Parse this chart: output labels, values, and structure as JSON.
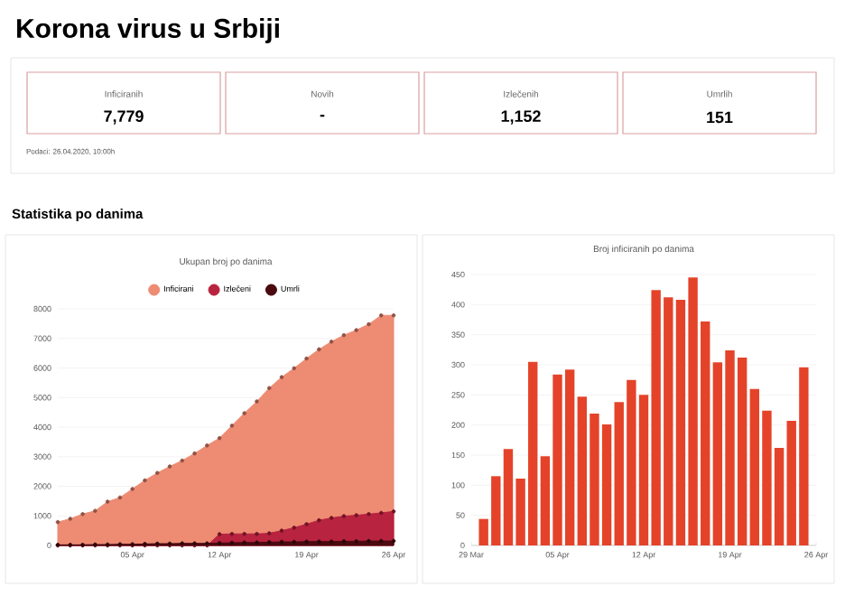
{
  "chart_data": [
    {
      "type": "other",
      "title": "Korona virus u Srbiji",
      "annotations": [
        "Inficiranih",
        "7,779",
        "Novih",
        "-",
        "Izlečenih",
        "1,152",
        "Umrlih",
        "151",
        "Podaci: 26.04.2020, 10:00h",
        "Statistika po danima"
      ]
    },
    {
      "type": "area",
      "title": "Ukupan broj po danima",
      "legend": "top",
      "grid": "y",
      "marker": "circle",
      "x": [
        "2020-03-30",
        "2020-03-31",
        "2020-04-01",
        "2020-04-02",
        "2020-04-03",
        "2020-04-04",
        "2020-04-05",
        "2020-04-06",
        "2020-04-07",
        "2020-04-08",
        "2020-04-09",
        "2020-04-10",
        "2020-04-11",
        "2020-04-12",
        "2020-04-13",
        "2020-04-14",
        "2020-04-15",
        "2020-04-16",
        "2020-04-17",
        "2020-04-18",
        "2020-04-19",
        "2020-04-20",
        "2020-04-21",
        "2020-04-22",
        "2020-04-23",
        "2020-04-24",
        "2020-04-25",
        "2020-04-26"
      ],
      "xlim": [
        "2020-03-30",
        "2020-04-26"
      ],
      "xticks": [
        {
          "value": "2020-04-05",
          "label": "05 Apr"
        },
        {
          "value": "2020-04-12",
          "label": "12 Apr"
        },
        {
          "value": "2020-04-19",
          "label": "19 Apr"
        },
        {
          "value": "2020-04-26",
          "label": "26 Apr"
        }
      ],
      "ylim": [
        0,
        8000
      ],
      "yticks": [
        0,
        1000,
        2000,
        3000,
        4000,
        5000,
        6000,
        7000,
        8000
      ],
      "series": [
        {
          "name": "Inficirani",
          "color": "#ee8b73",
          "values": [
            790,
            900,
            1060,
            1170,
            1480,
            1620,
            1910,
            2200,
            2450,
            2670,
            2870,
            3110,
            3380,
            3630,
            4050,
            4470,
            4870,
            5320,
            5690,
            5990,
            6320,
            6630,
            6890,
            7110,
            7280,
            7480,
            7780,
            7780
          ]
        },
        {
          "name": "Izlečeni",
          "color": "#b8233f",
          "values": [
            0,
            0,
            0,
            0,
            0,
            0,
            0,
            0,
            0,
            0,
            0,
            0,
            0,
            380,
            390,
            390,
            390,
            410,
            500,
            600,
            720,
            850,
            930,
            990,
            1020,
            1060,
            1100,
            1150
          ]
        },
        {
          "name": "Umrli",
          "color": "#4a0a10",
          "values": [
            20,
            20,
            20,
            30,
            30,
            40,
            40,
            50,
            60,
            60,
            70,
            70,
            70,
            80,
            90,
            100,
            100,
            110,
            120,
            120,
            130,
            130,
            130,
            140,
            140,
            150,
            150,
            150
          ]
        }
      ]
    },
    {
      "type": "bar",
      "title": "Broj inficiranih po danima",
      "grid": "y",
      "color": "#e4432a",
      "x": [
        "2020-03-30",
        "2020-03-31",
        "2020-04-01",
        "2020-04-02",
        "2020-04-03",
        "2020-04-04",
        "2020-04-05",
        "2020-04-06",
        "2020-04-07",
        "2020-04-08",
        "2020-04-09",
        "2020-04-10",
        "2020-04-11",
        "2020-04-12",
        "2020-04-13",
        "2020-04-14",
        "2020-04-15",
        "2020-04-16",
        "2020-04-17",
        "2020-04-18",
        "2020-04-19",
        "2020-04-20",
        "2020-04-21",
        "2020-04-22",
        "2020-04-23",
        "2020-04-24",
        "2020-04-25"
      ],
      "values": [
        44,
        115,
        160,
        111,
        305,
        148,
        284,
        292,
        247,
        219,
        201,
        238,
        275,
        250,
        424,
        412,
        408,
        445,
        372,
        304,
        324,
        312,
        260,
        224,
        162,
        207,
        296
      ],
      "xlim": [
        "2020-03-29",
        "2020-04-26"
      ],
      "xticks": [
        {
          "value": "2020-03-29",
          "label": "29 Mar"
        },
        {
          "value": "2020-04-05",
          "label": "05 Apr"
        },
        {
          "value": "2020-04-12",
          "label": "12 Apr"
        },
        {
          "value": "2020-04-19",
          "label": "19 Apr"
        },
        {
          "value": "2020-04-26",
          "label": "26 Apr"
        }
      ],
      "ylim": [
        0,
        450
      ],
      "yticks": [
        0,
        50,
        100,
        150,
        200,
        250,
        300,
        350,
        400,
        450
      ]
    }
  ]
}
